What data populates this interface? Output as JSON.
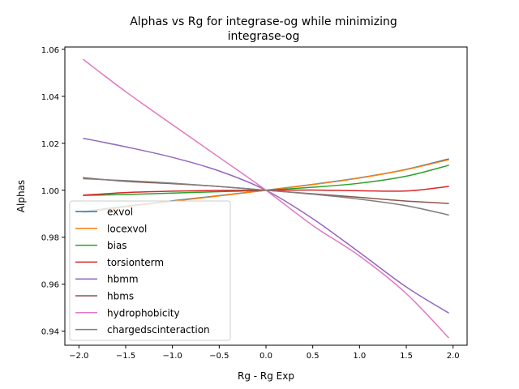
{
  "chart_data": {
    "type": "line",
    "title_lines": [
      "Alphas vs Rg for integrase-og while minimizing",
      "integrase-og"
    ],
    "xlabel": "Rg - Rg Exp",
    "ylabel": "Alphas",
    "xlim": [
      -2.15,
      2.15
    ],
    "ylim": [
      0.934,
      1.061
    ],
    "xticks": [
      -2.0,
      -1.5,
      -1.0,
      -0.5,
      0.0,
      0.5,
      1.0,
      1.5,
      2.0
    ],
    "xtick_labels": [
      "−2.0",
      "−1.5",
      "−1.0",
      "−0.5",
      "0.0",
      "0.5",
      "1.0",
      "1.5",
      "2.0"
    ],
    "yticks": [
      0.94,
      0.96,
      0.98,
      1.0,
      1.02,
      1.04,
      1.06
    ],
    "ytick_labels": [
      "0.94",
      "0.96",
      "0.98",
      "1.00",
      "1.02",
      "1.04",
      "1.06"
    ],
    "grid": false,
    "legend_position": "lower-left",
    "x": [
      -1.95,
      -1.5,
      -1.0,
      -0.5,
      0.0,
      0.5,
      1.0,
      1.5,
      1.95
    ],
    "series": [
      {
        "name": "exvol",
        "color": "#1f77b4",
        "values": [
          0.9909,
          0.9932,
          0.9955,
          0.9977,
          1.0,
          1.0025,
          1.0053,
          1.0089,
          1.0133
        ]
      },
      {
        "name": "locexvol",
        "color": "#ff7f0e",
        "values": [
          0.9905,
          0.9929,
          0.9953,
          0.9976,
          1.0,
          1.0024,
          1.0052,
          1.0088,
          1.013
        ]
      },
      {
        "name": "bias",
        "color": "#2ca02c",
        "values": [
          0.9978,
          0.9982,
          0.9988,
          0.9994,
          1.0,
          1.0013,
          1.003,
          1.006,
          1.0106
        ]
      },
      {
        "name": "torsionterm",
        "color": "#d62728",
        "values": [
          0.9979,
          0.999,
          0.9996,
          0.9999,
          1.0,
          1.0001,
          0.9998,
          0.9997,
          1.0016
        ]
      },
      {
        "name": "hbmm",
        "color": "#9467bd",
        "values": [
          1.0221,
          1.0185,
          1.014,
          1.0082,
          1.0,
          0.9879,
          0.9735,
          0.9588,
          0.9478
        ]
      },
      {
        "name": "hbms",
        "color": "#8c564b",
        "values": [
          1.0053,
          1.0038,
          1.0028,
          1.0016,
          1.0,
          0.9985,
          0.997,
          0.9954,
          0.9944
        ]
      },
      {
        "name": "hydrophobicity",
        "color": "#e377c2",
        "values": [
          1.0556,
          1.042,
          1.0279,
          1.014,
          1.0,
          0.985,
          0.972,
          0.956,
          0.9373
        ]
      },
      {
        "name": "chargedscinteraction",
        "color": "#7f7f7f",
        "values": [
          1.0049,
          1.0041,
          1.003,
          1.0016,
          1.0,
          0.9983,
          0.9962,
          0.9934,
          0.9895
        ]
      }
    ]
  }
}
